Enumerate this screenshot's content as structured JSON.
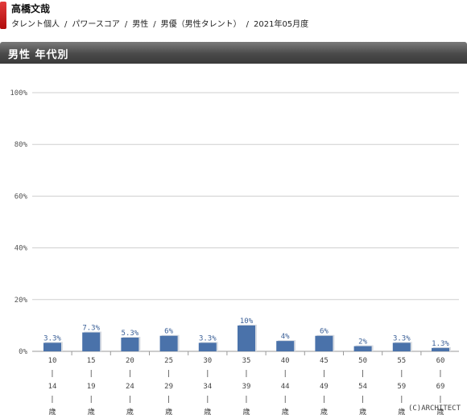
{
  "header": {
    "talent_name": "高橋文哉",
    "breadcrumb": [
      "タレント個人",
      "パワースコア",
      "男性",
      "男優（男性タレント）",
      "2021年05月度"
    ]
  },
  "section": {
    "title": "男性 年代別"
  },
  "chart_data": {
    "type": "bar",
    "categories": [
      {
        "from": "10",
        "to": "14",
        "unit": "歳"
      },
      {
        "from": "15",
        "to": "19",
        "unit": "歳"
      },
      {
        "from": "20",
        "to": "24",
        "unit": "歳"
      },
      {
        "from": "25",
        "to": "29",
        "unit": "歳"
      },
      {
        "from": "30",
        "to": "34",
        "unit": "歳"
      },
      {
        "from": "35",
        "to": "39",
        "unit": "歳"
      },
      {
        "from": "40",
        "to": "44",
        "unit": "歳"
      },
      {
        "from": "45",
        "to": "49",
        "unit": "歳"
      },
      {
        "from": "50",
        "to": "54",
        "unit": "歳"
      },
      {
        "from": "55",
        "to": "59",
        "unit": "歳"
      },
      {
        "from": "60",
        "to": "69",
        "unit": "歳"
      }
    ],
    "values": [
      3.3,
      7.3,
      5.3,
      6,
      3.3,
      10,
      4,
      6,
      2,
      3.3,
      1.3
    ],
    "value_labels": [
      "3.3%",
      "7.3%",
      "5.3%",
      "6%",
      "3.3%",
      "10%",
      "4%",
      "6%",
      "2%",
      "3.3%",
      "1.3%"
    ],
    "ylim": [
      0,
      100
    ],
    "yticks": [
      "0%",
      "20%",
      "40%",
      "60%",
      "80%",
      "100%"
    ],
    "grid": true,
    "bar_color": "#4a72aa",
    "label_color": "#3a5f97"
  },
  "footer": {
    "copyright": "(C)ARCHITECT"
  }
}
